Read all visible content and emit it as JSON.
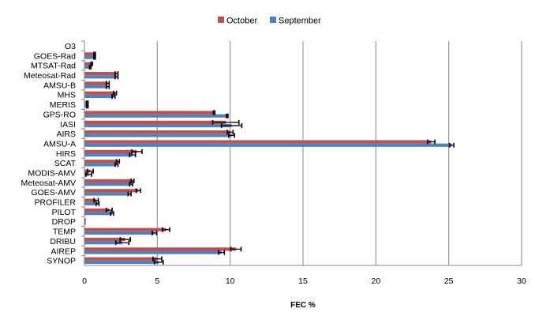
{
  "chart_data": {
    "type": "bar",
    "orientation": "horizontal",
    "xlabel": "FEC %",
    "xlim": [
      0,
      30
    ],
    "xticks": [
      "0",
      "5",
      "10",
      "15",
      "20",
      "25",
      "30"
    ],
    "grid": "vertical",
    "legend_placement": "top",
    "categories": [
      "O3",
      "GOES-Rad",
      "MTSAT-Rad",
      "Meteosat-Rad",
      "AMSU-B",
      "MHS",
      "MERIS",
      "GPS-RO",
      "IASI",
      "AIRS",
      "AMSU-A",
      "HIRS",
      "SCAT",
      "MODIS-AMV",
      "Meteosat-AMV",
      "GOES-AMV",
      "PROFILER",
      "PILOT",
      "DROP",
      "TEMP",
      "DRIBU",
      "AIREP",
      "SYNOP"
    ],
    "series": [
      {
        "name": "October",
        "color": "#C0504D",
        "values": [
          0,
          0.7,
          0.5,
          2.2,
          1.6,
          2.1,
          0.2,
          8.9,
          9.7,
          10.0,
          23.8,
          3.6,
          2.3,
          0.4,
          3.3,
          3.7,
          0.8,
          1.7,
          0.1,
          5.6,
          2.8,
          10.4,
          5.0
        ],
        "errors": [
          0,
          0.05,
          0.05,
          0.1,
          0.1,
          0.1,
          0.05,
          0.05,
          0.9,
          0.2,
          0.25,
          0.35,
          0.1,
          0.2,
          0.1,
          0.15,
          0.15,
          0.2,
          0,
          0.25,
          0.35,
          0.35,
          0.3
        ]
      },
      {
        "name": "September",
        "color": "#4F81BD",
        "values": [
          0,
          0.7,
          0.4,
          2.2,
          1.6,
          2.0,
          0.2,
          9.8,
          10.1,
          10.1,
          25.2,
          3.3,
          2.2,
          0.3,
          3.2,
          3.1,
          0.9,
          1.9,
          0.1,
          4.8,
          2.6,
          9.4,
          5.1
        ],
        "errors": [
          0,
          0.05,
          0.05,
          0.1,
          0.1,
          0.1,
          0.05,
          0.05,
          0.7,
          0.2,
          0.15,
          0.2,
          0.1,
          0.2,
          0.1,
          0.1,
          0.1,
          0.1,
          0,
          0.15,
          0.45,
          0.2,
          0.3
        ]
      }
    ]
  }
}
